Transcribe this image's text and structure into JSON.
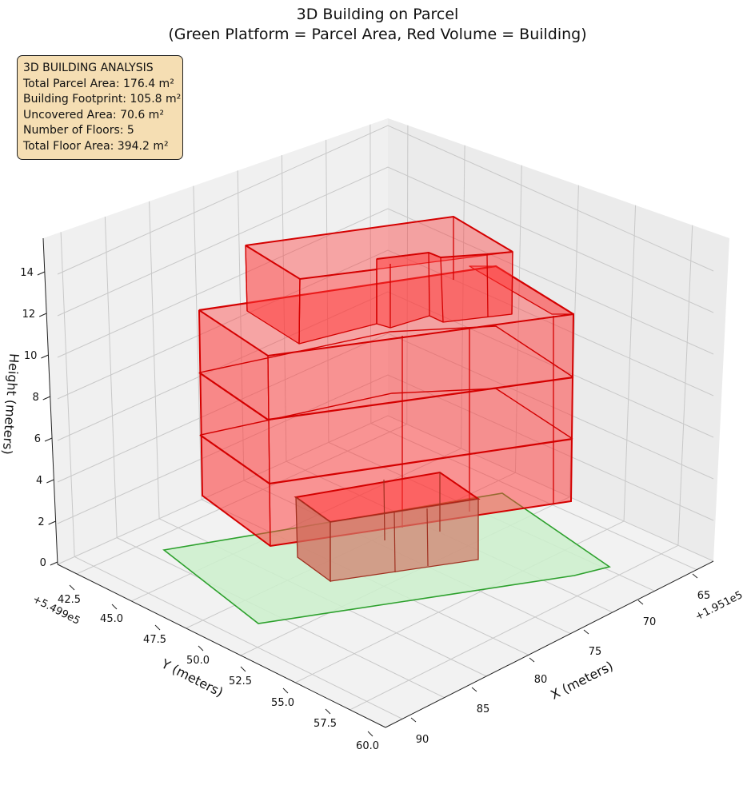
{
  "title_line1": "3D Building on Parcel",
  "title_line2": "(Green Platform = Parcel Area, Red Volume = Building)",
  "info": {
    "heading": "3D BUILDING ANALYSIS",
    "parcel": "Total Parcel Area: 176.4 m²",
    "footprint": "Building Footprint: 105.8 m²",
    "uncovered": "Uncovered Area: 70.6 m²",
    "floors": "Number of Floors: 5",
    "floor_area": "Total Floor Area: 394.2 m²"
  },
  "chart_data": {
    "type": "3d-polygons",
    "view": {
      "elevation_deg": 22,
      "azimuth_deg": 45
    },
    "x_axis": {
      "label": "X (meters)",
      "offset": "+1.951e5",
      "ticks": [
        "65",
        "70",
        "75",
        "80",
        "85",
        "90"
      ],
      "range": [
        63,
        92
      ]
    },
    "y_axis": {
      "label": "Y (meters)",
      "offset": "+5.499e5",
      "ticks": [
        "42.5",
        "45.0",
        "47.5",
        "50.0",
        "52.5",
        "55.0",
        "57.5",
        "60.0"
      ],
      "range": [
        41,
        61
      ]
    },
    "z_axis": {
      "label": "Height (meters)",
      "ticks": [
        "0",
        "2",
        "4",
        "6",
        "8",
        "10",
        "12",
        "14"
      ],
      "range": [
        0,
        15
      ]
    },
    "parcel": {
      "color": "#2ca02c",
      "fill": "#ccf0cc",
      "note": "ground-level polygon (z = 0)"
    },
    "building": {
      "color": "#cc0000",
      "fill": "#ff3333",
      "floors": 5,
      "note": "stacked extruded floor volumes"
    },
    "grid": true,
    "colors": {
      "pane": "#f2f2f2",
      "grid": "#c8c8c8",
      "parcel_edge": "#2ca02c",
      "building_edge": "#d40000"
    }
  }
}
